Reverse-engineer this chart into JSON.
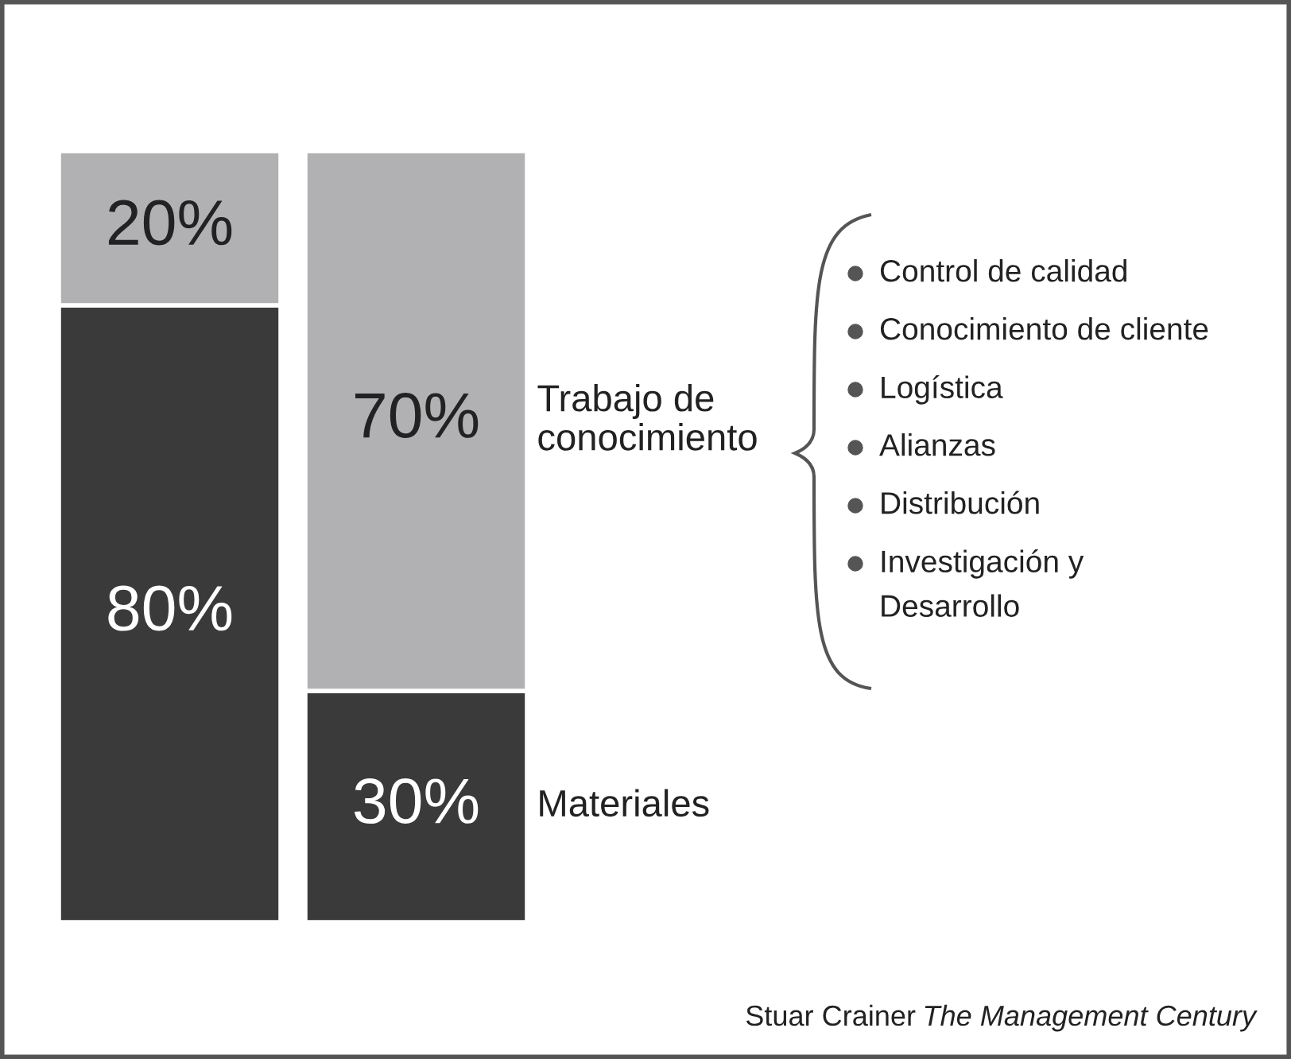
{
  "chart_data": {
    "type": "bar",
    "stacked": true,
    "categories": [
      null,
      null
    ],
    "series": [
      {
        "name": "Materiales",
        "color": "#3a3a3a",
        "values": [
          80,
          30
        ],
        "value_labels": [
          "80%",
          "30%"
        ]
      },
      {
        "name": "Trabajo de\nconocimiento",
        "color": "#b1b1b3",
        "values": [
          20,
          70
        ],
        "value_labels": [
          "20%",
          "70%"
        ]
      }
    ],
    "annotations": [
      "Control de calidad",
      "Conocimiento de cliente",
      "Logística",
      "Alianzas",
      "Distribución",
      "Investigación y\nDesarrollo",
      "Stuar Crainer",
      "The Management Century"
    ]
  }
}
